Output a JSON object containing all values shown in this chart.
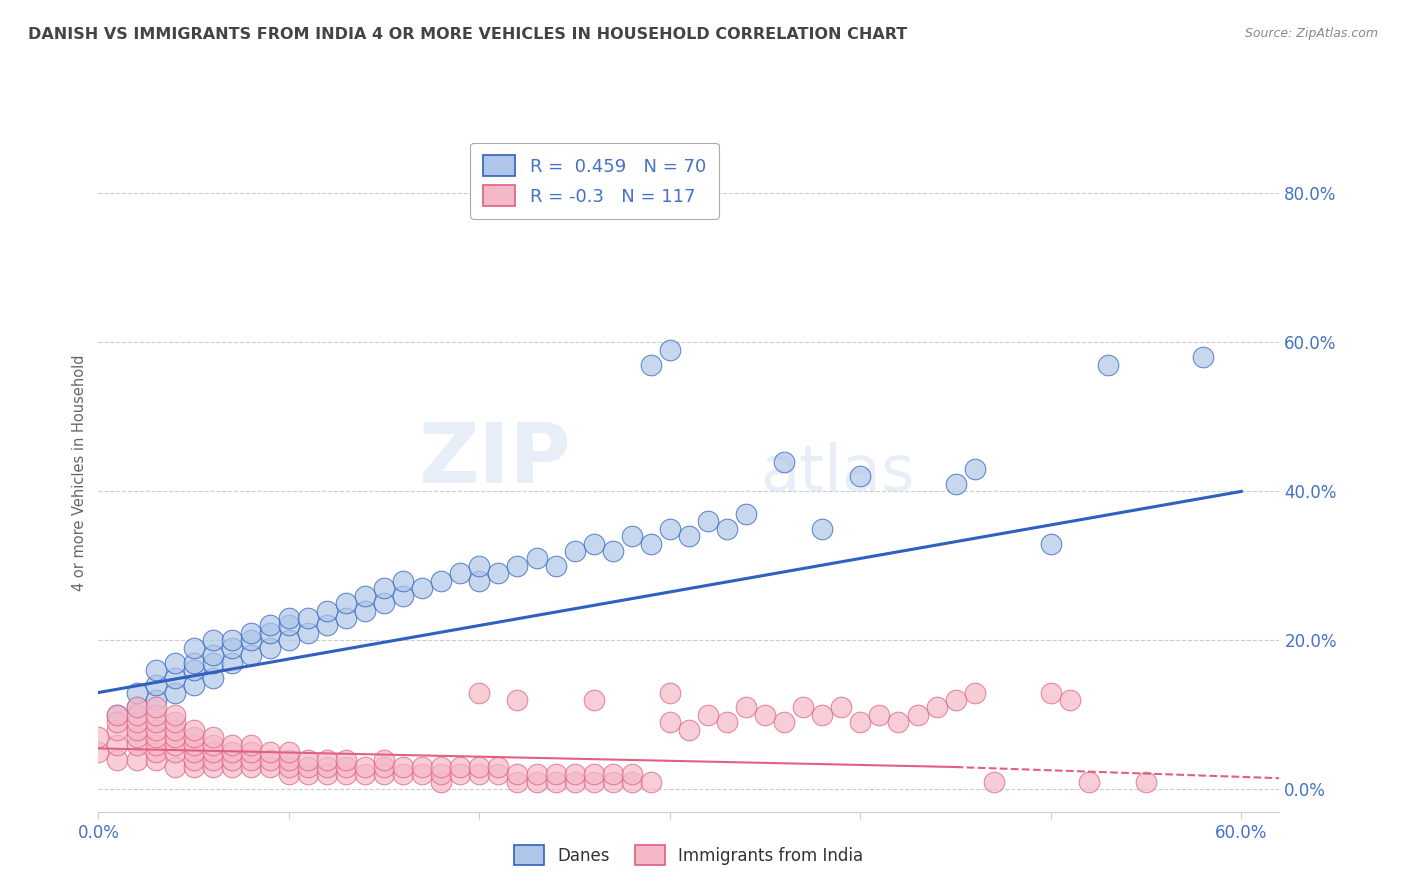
{
  "title": "DANISH VS IMMIGRANTS FROM INDIA 4 OR MORE VEHICLES IN HOUSEHOLD CORRELATION CHART",
  "source": "Source: ZipAtlas.com",
  "ylabel": "4 or more Vehicles in Household",
  "ytick_vals": [
    0.0,
    0.2,
    0.4,
    0.6,
    0.8
  ],
  "ytick_labels": [
    "0.0%",
    "20.0%",
    "40.0%",
    "60.0%",
    "80.0%"
  ],
  "xlim": [
    0.0,
    0.62
  ],
  "ylim": [
    -0.03,
    0.88
  ],
  "legend_danes": "Danes",
  "legend_india": "Immigrants from India",
  "r_danes": 0.459,
  "n_danes": 70,
  "r_india": -0.3,
  "n_india": 117,
  "danes_color": "#aec6e8",
  "india_color": "#f5b8c8",
  "danes_line_color": "#3060c0",
  "india_line_color": "#e06080",
  "danes_scatter": [
    [
      0.01,
      0.1
    ],
    [
      0.02,
      0.11
    ],
    [
      0.02,
      0.13
    ],
    [
      0.03,
      0.12
    ],
    [
      0.03,
      0.14
    ],
    [
      0.03,
      0.16
    ],
    [
      0.04,
      0.13
    ],
    [
      0.04,
      0.15
    ],
    [
      0.04,
      0.17
    ],
    [
      0.05,
      0.14
    ],
    [
      0.05,
      0.16
    ],
    [
      0.05,
      0.17
    ],
    [
      0.05,
      0.19
    ],
    [
      0.06,
      0.15
    ],
    [
      0.06,
      0.17
    ],
    [
      0.06,
      0.18
    ],
    [
      0.06,
      0.2
    ],
    [
      0.07,
      0.17
    ],
    [
      0.07,
      0.19
    ],
    [
      0.07,
      0.2
    ],
    [
      0.08,
      0.18
    ],
    [
      0.08,
      0.2
    ],
    [
      0.08,
      0.21
    ],
    [
      0.09,
      0.19
    ],
    [
      0.09,
      0.21
    ],
    [
      0.09,
      0.22
    ],
    [
      0.1,
      0.2
    ],
    [
      0.1,
      0.22
    ],
    [
      0.1,
      0.23
    ],
    [
      0.11,
      0.21
    ],
    [
      0.11,
      0.23
    ],
    [
      0.12,
      0.22
    ],
    [
      0.12,
      0.24
    ],
    [
      0.13,
      0.23
    ],
    [
      0.13,
      0.25
    ],
    [
      0.14,
      0.24
    ],
    [
      0.14,
      0.26
    ],
    [
      0.15,
      0.25
    ],
    [
      0.15,
      0.27
    ],
    [
      0.16,
      0.26
    ],
    [
      0.16,
      0.28
    ],
    [
      0.17,
      0.27
    ],
    [
      0.18,
      0.28
    ],
    [
      0.19,
      0.29
    ],
    [
      0.2,
      0.28
    ],
    [
      0.2,
      0.3
    ],
    [
      0.21,
      0.29
    ],
    [
      0.22,
      0.3
    ],
    [
      0.23,
      0.31
    ],
    [
      0.24,
      0.3
    ],
    [
      0.25,
      0.32
    ],
    [
      0.26,
      0.33
    ],
    [
      0.27,
      0.32
    ],
    [
      0.28,
      0.34
    ],
    [
      0.29,
      0.33
    ],
    [
      0.3,
      0.35
    ],
    [
      0.31,
      0.34
    ],
    [
      0.32,
      0.36
    ],
    [
      0.33,
      0.35
    ],
    [
      0.34,
      0.37
    ],
    [
      0.29,
      0.57
    ],
    [
      0.3,
      0.59
    ],
    [
      0.36,
      0.44
    ],
    [
      0.4,
      0.42
    ],
    [
      0.45,
      0.41
    ],
    [
      0.46,
      0.43
    ],
    [
      0.5,
      0.33
    ],
    [
      0.53,
      0.57
    ],
    [
      0.58,
      0.58
    ],
    [
      0.38,
      0.35
    ]
  ],
  "india_scatter": [
    [
      0.0,
      0.05
    ],
    [
      0.0,
      0.07
    ],
    [
      0.01,
      0.04
    ],
    [
      0.01,
      0.06
    ],
    [
      0.01,
      0.08
    ],
    [
      0.01,
      0.09
    ],
    [
      0.01,
      0.1
    ],
    [
      0.02,
      0.04
    ],
    [
      0.02,
      0.06
    ],
    [
      0.02,
      0.07
    ],
    [
      0.02,
      0.08
    ],
    [
      0.02,
      0.09
    ],
    [
      0.02,
      0.1
    ],
    [
      0.02,
      0.11
    ],
    [
      0.03,
      0.04
    ],
    [
      0.03,
      0.05
    ],
    [
      0.03,
      0.06
    ],
    [
      0.03,
      0.07
    ],
    [
      0.03,
      0.08
    ],
    [
      0.03,
      0.09
    ],
    [
      0.03,
      0.1
    ],
    [
      0.03,
      0.11
    ],
    [
      0.04,
      0.03
    ],
    [
      0.04,
      0.05
    ],
    [
      0.04,
      0.06
    ],
    [
      0.04,
      0.07
    ],
    [
      0.04,
      0.08
    ],
    [
      0.04,
      0.09
    ],
    [
      0.04,
      0.1
    ],
    [
      0.05,
      0.03
    ],
    [
      0.05,
      0.04
    ],
    [
      0.05,
      0.05
    ],
    [
      0.05,
      0.06
    ],
    [
      0.05,
      0.07
    ],
    [
      0.05,
      0.08
    ],
    [
      0.06,
      0.03
    ],
    [
      0.06,
      0.04
    ],
    [
      0.06,
      0.05
    ],
    [
      0.06,
      0.06
    ],
    [
      0.06,
      0.07
    ],
    [
      0.07,
      0.03
    ],
    [
      0.07,
      0.04
    ],
    [
      0.07,
      0.05
    ],
    [
      0.07,
      0.06
    ],
    [
      0.08,
      0.03
    ],
    [
      0.08,
      0.04
    ],
    [
      0.08,
      0.05
    ],
    [
      0.08,
      0.06
    ],
    [
      0.09,
      0.03
    ],
    [
      0.09,
      0.04
    ],
    [
      0.09,
      0.05
    ],
    [
      0.1,
      0.02
    ],
    [
      0.1,
      0.03
    ],
    [
      0.1,
      0.04
    ],
    [
      0.1,
      0.05
    ],
    [
      0.11,
      0.02
    ],
    [
      0.11,
      0.03
    ],
    [
      0.11,
      0.04
    ],
    [
      0.12,
      0.02
    ],
    [
      0.12,
      0.03
    ],
    [
      0.12,
      0.04
    ],
    [
      0.13,
      0.02
    ],
    [
      0.13,
      0.03
    ],
    [
      0.13,
      0.04
    ],
    [
      0.14,
      0.02
    ],
    [
      0.14,
      0.03
    ],
    [
      0.15,
      0.02
    ],
    [
      0.15,
      0.03
    ],
    [
      0.15,
      0.04
    ],
    [
      0.16,
      0.02
    ],
    [
      0.16,
      0.03
    ],
    [
      0.17,
      0.02
    ],
    [
      0.17,
      0.03
    ],
    [
      0.18,
      0.01
    ],
    [
      0.18,
      0.02
    ],
    [
      0.18,
      0.03
    ],
    [
      0.19,
      0.02
    ],
    [
      0.19,
      0.03
    ],
    [
      0.2,
      0.02
    ],
    [
      0.2,
      0.03
    ],
    [
      0.2,
      0.13
    ],
    [
      0.21,
      0.02
    ],
    [
      0.21,
      0.03
    ],
    [
      0.22,
      0.01
    ],
    [
      0.22,
      0.02
    ],
    [
      0.22,
      0.12
    ],
    [
      0.23,
      0.01
    ],
    [
      0.23,
      0.02
    ],
    [
      0.24,
      0.01
    ],
    [
      0.24,
      0.02
    ],
    [
      0.25,
      0.01
    ],
    [
      0.25,
      0.02
    ],
    [
      0.26,
      0.01
    ],
    [
      0.26,
      0.02
    ],
    [
      0.26,
      0.12
    ],
    [
      0.27,
      0.01
    ],
    [
      0.27,
      0.02
    ],
    [
      0.28,
      0.01
    ],
    [
      0.28,
      0.02
    ],
    [
      0.29,
      0.01
    ],
    [
      0.3,
      0.09
    ],
    [
      0.3,
      0.13
    ],
    [
      0.31,
      0.08
    ],
    [
      0.32,
      0.1
    ],
    [
      0.33,
      0.09
    ],
    [
      0.34,
      0.11
    ],
    [
      0.35,
      0.1
    ],
    [
      0.36,
      0.09
    ],
    [
      0.37,
      0.11
    ],
    [
      0.38,
      0.1
    ],
    [
      0.39,
      0.11
    ],
    [
      0.4,
      0.09
    ],
    [
      0.41,
      0.1
    ],
    [
      0.42,
      0.09
    ],
    [
      0.43,
      0.1
    ],
    [
      0.44,
      0.11
    ],
    [
      0.45,
      0.12
    ],
    [
      0.46,
      0.13
    ],
    [
      0.47,
      0.01
    ],
    [
      0.5,
      0.13
    ],
    [
      0.51,
      0.12
    ],
    [
      0.52,
      0.01
    ],
    [
      0.55,
      0.01
    ]
  ],
  "background_color": "#ffffff",
  "grid_color": "#cccccc",
  "watermark_zip": "ZIP",
  "watermark_atlas": "atlas",
  "title_color": "#444444",
  "axis_label_color": "#4472C4",
  "title_fontsize": 11.5,
  "source_color": "#888888"
}
